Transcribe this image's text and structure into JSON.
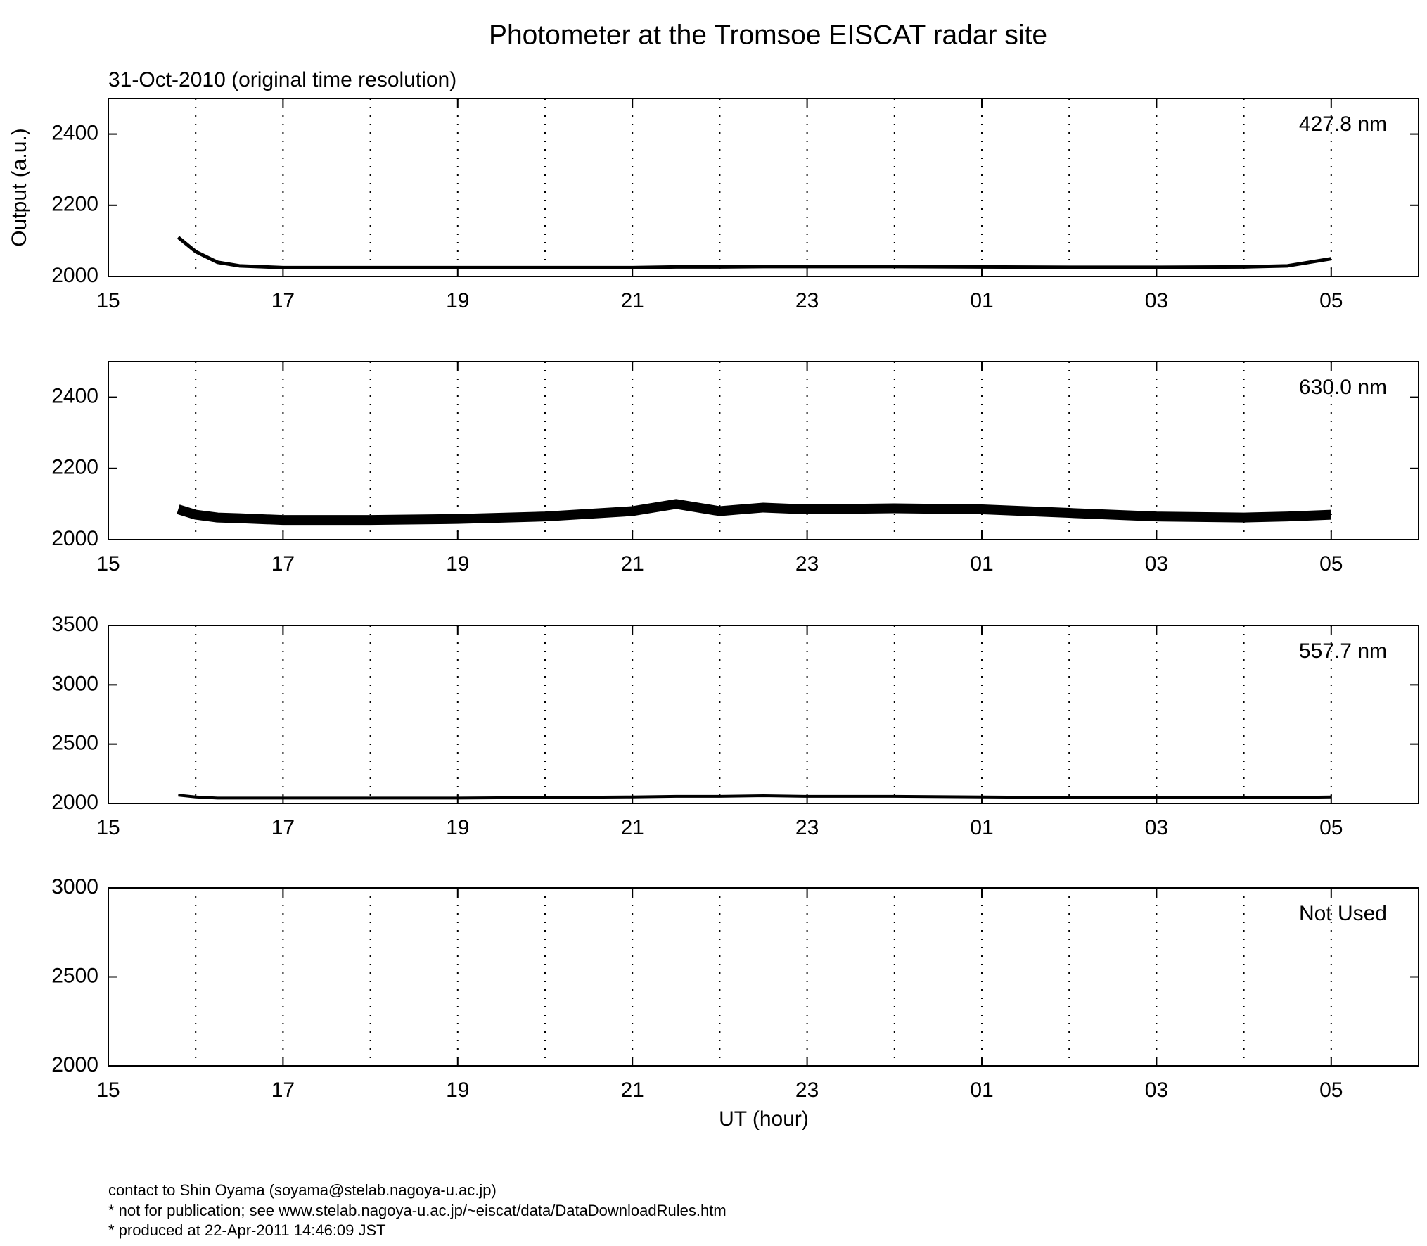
{
  "title": "Photometer at the Tromsoe EISCAT radar site",
  "subtitle": "31-Oct-2010 (original time resolution)",
  "chart_data": [
    {
      "type": "line",
      "annotation": "427.8 nm",
      "ylabel": "Output (a.u.)",
      "x": [
        15.8,
        16,
        16.25,
        16.5,
        17,
        18,
        19,
        20,
        21,
        21.5,
        22,
        22.5,
        23,
        24,
        25,
        26,
        27,
        28,
        28.5,
        29
      ],
      "series": [
        {
          "color": "#000000",
          "values": [
            2110,
            2070,
            2040,
            2030,
            2025,
            2025,
            2025,
            2025,
            2025,
            2027,
            2027,
            2028,
            2028,
            2028,
            2027,
            2026,
            2026,
            2027,
            2030,
            2050
          ]
        }
      ],
      "xlim": [
        15,
        30
      ],
      "xticks": [
        15,
        17,
        19,
        21,
        23,
        {
          "value": 25,
          "label": "01"
        },
        {
          "value": 27,
          "label": "03"
        },
        {
          "value": 29,
          "label": "05"
        }
      ],
      "xgrid": [
        16,
        17,
        18,
        19,
        20,
        21,
        22,
        23,
        24,
        25,
        26,
        27,
        28,
        29
      ],
      "ylim": [
        2000,
        2500
      ],
      "yticks": [
        2000,
        2200,
        2400
      ]
    },
    {
      "type": "line",
      "annotation": "630.0 nm",
      "x": [
        15.8,
        16,
        16.25,
        16.5,
        17,
        18,
        19,
        20,
        21,
        21.5,
        22,
        22.5,
        23,
        24,
        25,
        26,
        27,
        28,
        28.5,
        29
      ],
      "series": [
        {
          "color": "#000000",
          "values": [
            2085,
            2070,
            2062,
            2060,
            2055,
            2055,
            2058,
            2065,
            2080,
            2100,
            2080,
            2090,
            2085,
            2088,
            2085,
            2075,
            2065,
            2062,
            2065,
            2070
          ]
        }
      ],
      "xlim": [
        15,
        30
      ],
      "xticks": [
        15,
        17,
        19,
        21,
        23,
        {
          "value": 25,
          "label": "01"
        },
        {
          "value": 27,
          "label": "03"
        },
        {
          "value": 29,
          "label": "05"
        }
      ],
      "xgrid": [
        16,
        17,
        18,
        19,
        20,
        21,
        22,
        23,
        24,
        25,
        26,
        27,
        28,
        29
      ],
      "ylim": [
        2000,
        2500
      ],
      "yticks": [
        2000,
        2200,
        2400
      ]
    },
    {
      "type": "line",
      "annotation": "557.7 nm",
      "x": [
        15.8,
        16,
        16.25,
        16.5,
        17,
        18,
        19,
        20,
        21,
        21.5,
        22,
        22.5,
        23,
        24,
        25,
        26,
        27,
        28,
        28.5,
        29
      ],
      "series": [
        {
          "color": "#000000",
          "values": [
            2070,
            2055,
            2045,
            2045,
            2045,
            2045,
            2045,
            2050,
            2055,
            2060,
            2060,
            2065,
            2060,
            2060,
            2055,
            2050,
            2050,
            2050,
            2050,
            2055
          ]
        }
      ],
      "xlim": [
        15,
        30
      ],
      "xticks": [
        15,
        17,
        19,
        21,
        23,
        {
          "value": 25,
          "label": "01"
        },
        {
          "value": 27,
          "label": "03"
        },
        {
          "value": 29,
          "label": "05"
        }
      ],
      "xgrid": [
        16,
        17,
        18,
        19,
        20,
        21,
        22,
        23,
        24,
        25,
        26,
        27,
        28,
        29
      ],
      "ylim": [
        2000,
        3500
      ],
      "yticks": [
        2000,
        2500,
        3000,
        3500
      ]
    },
    {
      "type": "line",
      "annotation": "Not Used",
      "xlabel": "UT (hour)",
      "x": [],
      "series": [],
      "xlim": [
        15,
        30
      ],
      "xticks": [
        15,
        17,
        19,
        21,
        23,
        {
          "value": 25,
          "label": "01"
        },
        {
          "value": 27,
          "label": "03"
        },
        {
          "value": 29,
          "label": "05"
        }
      ],
      "xgrid": [
        16,
        17,
        18,
        19,
        20,
        21,
        22,
        23,
        24,
        25,
        26,
        27,
        28,
        29
      ],
      "ylim": [
        2000,
        3000
      ],
      "yticks": [
        2000,
        2500,
        3000
      ]
    }
  ],
  "footer": [
    "contact to Shin Oyama (soyama@stelab.nagoya-u.ac.jp)",
    "* not for publication; see www.stelab.nagoya-u.ac.jp/~eiscat/data/DataDownloadRules.htm",
    "* produced at 22-Apr-2011 14:46:09 JST"
  ]
}
